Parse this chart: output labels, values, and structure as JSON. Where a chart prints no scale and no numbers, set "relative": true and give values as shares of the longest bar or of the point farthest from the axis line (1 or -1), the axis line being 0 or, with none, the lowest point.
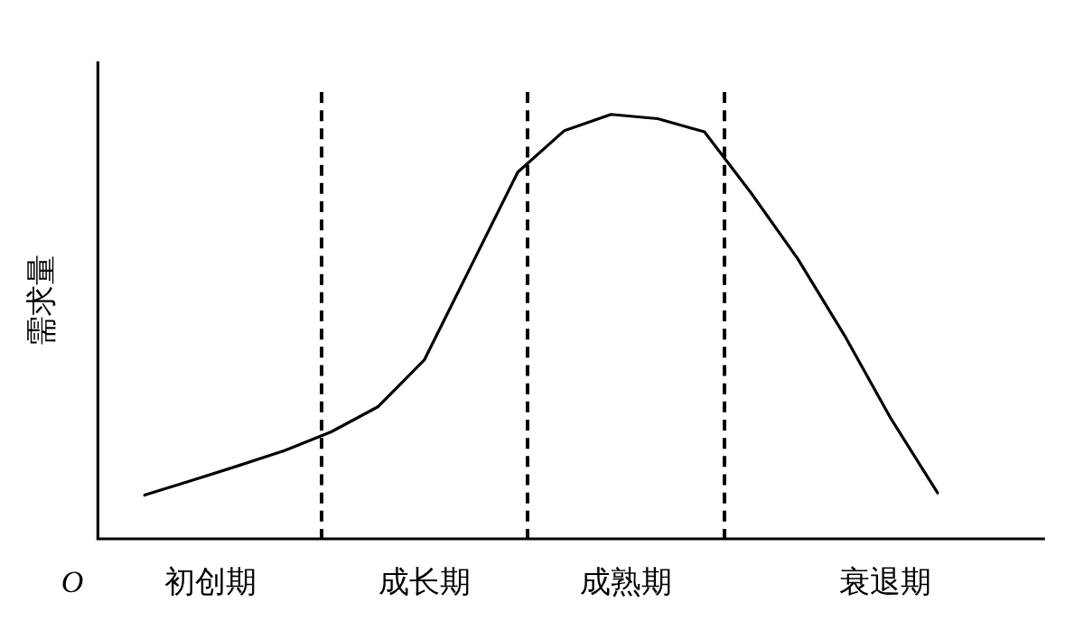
{
  "chart_data": {
    "type": "line",
    "relative": true,
    "ylabel": "需求量",
    "legend": false,
    "marker": "none",
    "line_style": "solid",
    "categories": [
      null,
      null,
      null,
      null,
      null,
      null,
      null,
      null,
      null,
      null,
      null,
      null,
      null,
      null,
      null,
      null,
      null,
      null
    ],
    "series": [
      {
        "color": "#000000",
        "values": [
          0.103,
          0.137,
          0.172,
          0.208,
          0.252,
          0.311,
          0.422,
          0.643,
          0.864,
          0.962,
          1,
          0.99,
          0.959,
          0.815,
          0.66,
          0.48,
          0.283,
          0.108
        ]
      }
    ],
    "annotations": [
      "O",
      "初创期",
      "成长期",
      "成熟期",
      "衰退期"
    ]
  }
}
